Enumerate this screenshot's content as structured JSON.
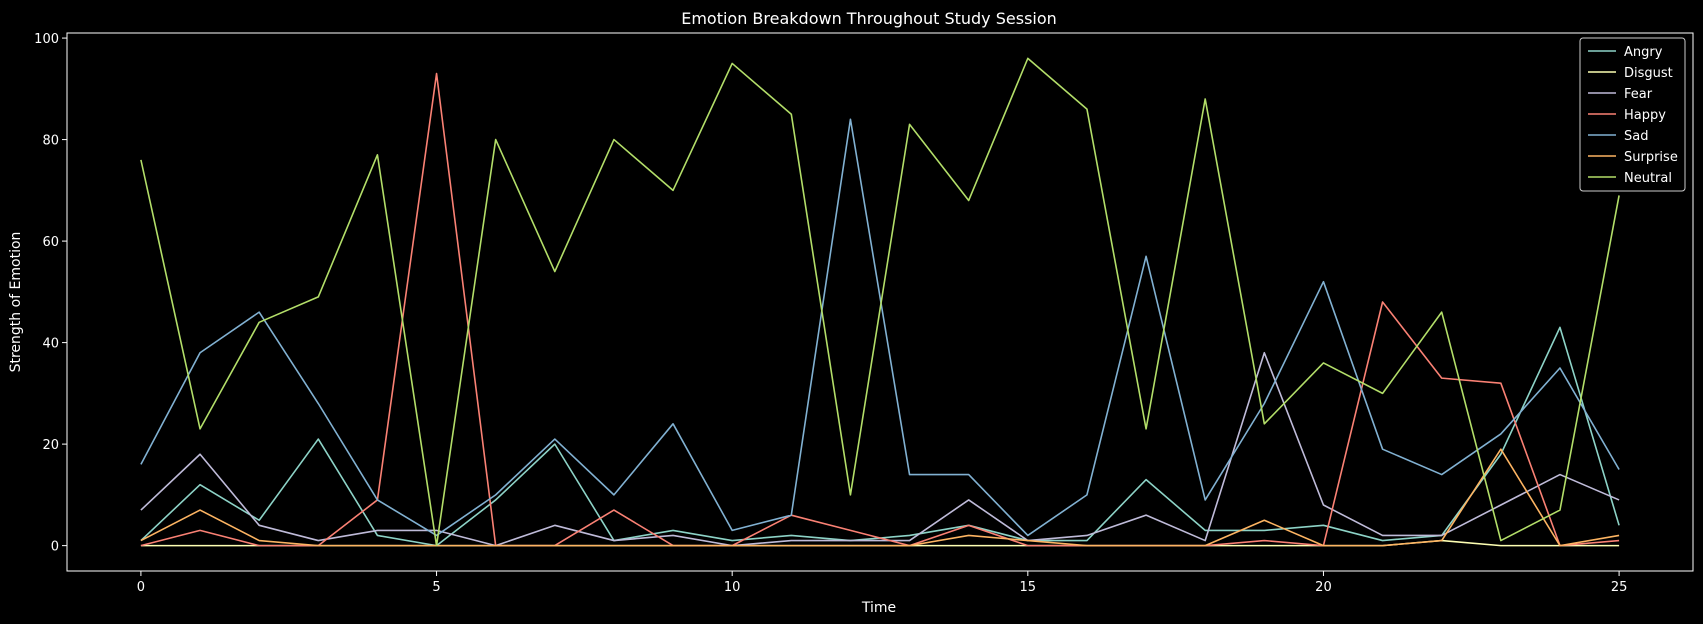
{
  "chart_data": {
    "type": "line",
    "title": "Emotion Breakdown Throughout Study Session",
    "xlabel": "Time",
    "ylabel": "Strength of Emotion",
    "xlim": [
      -1.25,
      26.25
    ],
    "ylim": [
      -5,
      101
    ],
    "xticks": [
      0,
      5,
      10,
      15,
      20,
      25
    ],
    "yticks": [
      0,
      20,
      40,
      60,
      80,
      100
    ],
    "grid": false,
    "legend_position": "top-right",
    "x": [
      0,
      1,
      2,
      3,
      4,
      5,
      6,
      7,
      8,
      9,
      10,
      11,
      12,
      13,
      14,
      15,
      16,
      17,
      18,
      19,
      20,
      21,
      22,
      23,
      24,
      25
    ],
    "series": [
      {
        "name": "Angry",
        "color": "#8dd3c7",
        "values": [
          1,
          12,
          5,
          21,
          2,
          0,
          9,
          20,
          1,
          3,
          1,
          2,
          1,
          2,
          4,
          1,
          1,
          13,
          3,
          3,
          4,
          1,
          2,
          18,
          43,
          4
        ]
      },
      {
        "name": "Disgust",
        "color": "#feffb3",
        "values": [
          0,
          0,
          0,
          0,
          0,
          0,
          0,
          0,
          0,
          0,
          0,
          0,
          0,
          0,
          0,
          0,
          0,
          0,
          0,
          0,
          0,
          0,
          1,
          0,
          0,
          0
        ]
      },
      {
        "name": "Fear",
        "color": "#bfbbd9",
        "values": [
          7,
          18,
          4,
          1,
          3,
          3,
          0,
          4,
          1,
          2,
          0,
          1,
          1,
          1,
          9,
          1,
          2,
          6,
          1,
          38,
          8,
          2,
          2,
          8,
          14,
          9
        ]
      },
      {
        "name": "Happy",
        "color": "#fa8174",
        "values": [
          0,
          3,
          0,
          0,
          9,
          93,
          0,
          0,
          7,
          0,
          0,
          6,
          3,
          0,
          4,
          0,
          0,
          0,
          0,
          1,
          0,
          48,
          33,
          32,
          0,
          1
        ]
      },
      {
        "name": "Sad",
        "color": "#81b1d2",
        "values": [
          16,
          38,
          46,
          28,
          9,
          2,
          10,
          21,
          10,
          24,
          3,
          6,
          84,
          14,
          14,
          2,
          10,
          57,
          9,
          28,
          52,
          19,
          14,
          22,
          35,
          15
        ]
      },
      {
        "name": "Surprise",
        "color": "#fdb462",
        "values": [
          1,
          7,
          1,
          0,
          0,
          0,
          0,
          0,
          0,
          0,
          0,
          0,
          0,
          0,
          2,
          1,
          0,
          0,
          0,
          5,
          0,
          0,
          1,
          19,
          0,
          2
        ]
      },
      {
        "name": "Neutral",
        "color": "#b3de69",
        "values": [
          76,
          23,
          44,
          49,
          77,
          0,
          80,
          54,
          80,
          70,
          95,
          85,
          10,
          83,
          68,
          96,
          86,
          23,
          88,
          24,
          36,
          30,
          46,
          1,
          7,
          69
        ]
      }
    ]
  }
}
